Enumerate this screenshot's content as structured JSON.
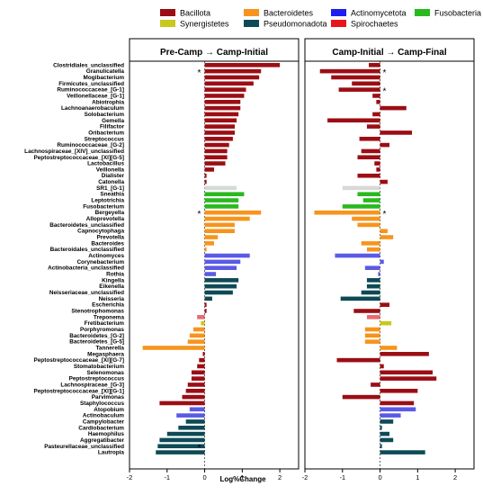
{
  "chart_data": {
    "type": "bar",
    "orientation": "horizontal",
    "xlabel": "Log%Change",
    "xlim": [
      -2,
      2.5
    ],
    "xticks": [
      -2,
      -1,
      0,
      1,
      2
    ],
    "grid": false,
    "legend_position": "top",
    "legend": [
      {
        "name": "Bacillota",
        "color": "#9b0e14"
      },
      {
        "name": "Bacteroidetes",
        "color": "#f7941d"
      },
      {
        "name": "Actinomycetota",
        "color": "#1e1ef0"
      },
      {
        "name": "Synergistetes",
        "color": "#c8c81e"
      },
      {
        "name": "Pseudomonadota",
        "color": "#0d4a55"
      },
      {
        "name": "Spirochaetes",
        "color": "#e8141e"
      },
      {
        "name": "Fusobacteria",
        "color": "#2ab81e"
      }
    ],
    "colors": {
      "Bacillota": "#9b0e14",
      "Bacteroidetes": "#f7941d",
      "Actinomycetota": "#5a5ae6",
      "Synergistetes": "#c8c81e",
      "Pseudomonadota": "#0d4a55",
      "Spirochaetes": "#e86a72",
      "Fusobacteria": "#2ab81e",
      "Unclassified": "#d9d9d9"
    },
    "categories": [
      "Clostridiales_unclassified",
      "Granulicatella",
      "Mogibacterium",
      "Firmicutes_unclassified",
      "Ruminococcaceae_[G-1]",
      "Veillonellaceae_[G-1]",
      "Abiotrophia",
      "Lachnoanaerobaculum",
      "Solobacterium",
      "Gemella",
      "Filifactor",
      "Oribacterium",
      "Streptococcus",
      "Ruminococcaceae_[G-2]",
      "Lachnospiraceae_[XIV]_unclassified",
      "Peptostreptococcaceae_[XI][G-5]",
      "Lactobacillus",
      "Veillonella",
      "Dialister",
      "Catonella",
      "SR1_[G-1]",
      "Sneathia",
      "Leptotrichia",
      "Fusobacterium",
      "Bergeyella",
      "Alloprevotella",
      "Bacteroidetes_unclassified",
      "Capnocytophaga",
      "Prevotella",
      "Bacteroides",
      "Bacteroidales_unclassified",
      "Actinomyces",
      "Corynebacterium",
      "Actinobacteria_unclassified",
      "Rothia",
      "Kingella",
      "Eikenella",
      "Neisseriaceae_unclassified",
      "Neisseria",
      "Escherichia",
      "Stenotrophomonas",
      "Treponema",
      "Fretibacterium",
      "Porphyromonas",
      "Bacteroidetes_[G-2]",
      "Bacteroidetes_[G-5]",
      "Tannerella",
      "Megasphaera",
      "Peptostreptococcaceae_[XI][G-7]",
      "Stomatobacterium",
      "Selenomonas",
      "Peptostreptococcus",
      "Lachnospiraceae_[G-3]",
      "Peptostreptococcaceae_[XI][G-1]",
      "Parvimonas",
      "Staphylococcus",
      "Atopobium",
      "Actinobaculum",
      "Campylobacter",
      "Cardiobacterium",
      "Haemophilus",
      "Aggregatibacter",
      "Pasteurellaceae_unclassified",
      "Lautropia"
    ],
    "phyla": [
      "Bacillota",
      "Bacillota",
      "Bacillota",
      "Bacillota",
      "Bacillota",
      "Bacillota",
      "Bacillota",
      "Bacillota",
      "Bacillota",
      "Bacillota",
      "Bacillota",
      "Bacillota",
      "Bacillota",
      "Bacillota",
      "Bacillota",
      "Bacillota",
      "Bacillota",
      "Bacillota",
      "Bacillota",
      "Bacillota",
      "Unclassified",
      "Fusobacteria",
      "Fusobacteria",
      "Fusobacteria",
      "Bacteroidetes",
      "Bacteroidetes",
      "Bacteroidetes",
      "Bacteroidetes",
      "Bacteroidetes",
      "Bacteroidetes",
      "Bacteroidetes",
      "Actinomycetota",
      "Actinomycetota",
      "Actinomycetota",
      "Actinomycetota",
      "Pseudomonadota",
      "Pseudomonadota",
      "Pseudomonadota",
      "Pseudomonadota",
      "Bacillota",
      "Bacillota",
      "Spirochaetes",
      "Synergistetes",
      "Bacteroidetes",
      "Bacteroidetes",
      "Bacteroidetes",
      "Bacteroidetes",
      "Bacillota",
      "Bacillota",
      "Bacillota",
      "Bacillota",
      "Bacillota",
      "Bacillota",
      "Bacillota",
      "Bacillota",
      "Bacillota",
      "Actinomycetota",
      "Actinomycetota",
      "Pseudomonadota",
      "Pseudomonadota",
      "Pseudomonadota",
      "Pseudomonadota",
      "Pseudomonadota",
      "Pseudomonadota"
    ],
    "series": [
      {
        "name": "Pre-Camp → Camp-Initial",
        "stars": [
          1,
          24,
          62
        ],
        "values": [
          2.0,
          1.5,
          1.45,
          1.3,
          1.1,
          1.05,
          0.95,
          0.95,
          0.9,
          0.85,
          0.8,
          0.8,
          0.75,
          0.65,
          0.6,
          0.6,
          0.55,
          0.25,
          0.05,
          0.05,
          0.85,
          1.05,
          0.9,
          0.9,
          1.5,
          1.2,
          0.8,
          0.8,
          0.35,
          0.25,
          0.05,
          1.2,
          0.95,
          0.85,
          0.3,
          0.9,
          0.85,
          0.75,
          0.2,
          0.05,
          0.05,
          -0.2,
          -0.1,
          -0.3,
          -0.4,
          -0.45,
          -1.65,
          -0.05,
          -0.15,
          -0.2,
          -0.35,
          -0.35,
          -0.45,
          -0.5,
          -0.6,
          -1.2,
          -0.4,
          -0.75,
          -0.5,
          -0.7,
          -1.0,
          -1.2,
          -1.25,
          -1.3
        ]
      },
      {
        "name": "Camp-Initial → Camp-Final",
        "stars": [
          1,
          4,
          24
        ],
        "values": [
          -0.3,
          -1.6,
          -1.3,
          -0.75,
          -1.1,
          -0.2,
          -0.1,
          0.7,
          -0.2,
          -1.4,
          -0.35,
          0.85,
          -0.55,
          0.25,
          -0.5,
          -0.6,
          -0.15,
          -0.1,
          -0.6,
          0.2,
          -1.0,
          -0.6,
          -0.45,
          -1.0,
          -1.75,
          -0.75,
          -0.6,
          0.2,
          0.35,
          -0.5,
          -0.35,
          -1.2,
          0.1,
          -0.4,
          -0.05,
          -0.35,
          -0.35,
          -0.5,
          -1.05,
          0.25,
          -0.7,
          -0.35,
          0.3,
          -0.4,
          -0.4,
          -0.4,
          0.45,
          1.3,
          -1.15,
          0.1,
          1.4,
          1.5,
          -0.25,
          1.0,
          -1.0,
          0.9,
          0.95,
          0.55,
          0.35,
          0.05,
          0.25,
          0.35,
          0.05,
          1.2
        ]
      }
    ]
  }
}
